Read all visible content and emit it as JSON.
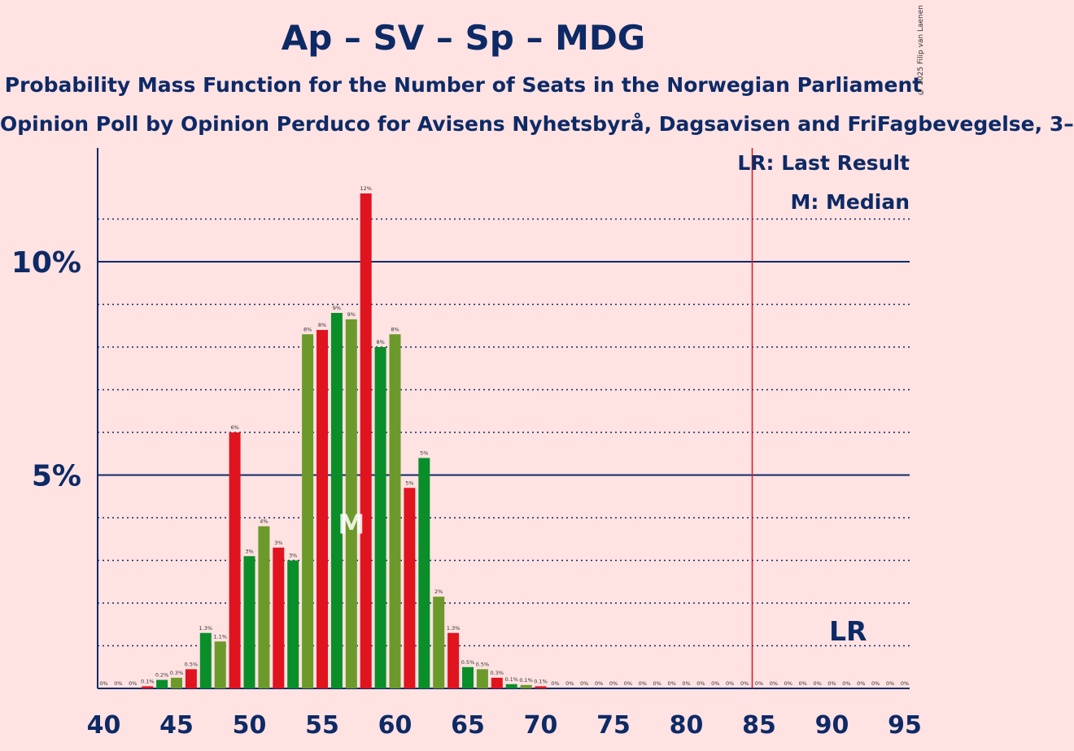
{
  "title": "Ap – SV – Sp – MDG",
  "subtitle": "Probability Mass Function for the Number of Seats in the Norwegian Parliament",
  "subsubtitle": "Opinion Poll by Opinion Perduco for Avisens Nyhetsbyrå, Dagsavisen and FriFagbevegelse, 3–",
  "credit": "© 2025 Filip van Laenen",
  "colors": {
    "background": "#FFE2E2",
    "red": "#E0141E",
    "green": "#0A8E2A",
    "olive": "#6B9A2A",
    "text": "#0D2A66",
    "last_result_line": "#E0141E"
  },
  "chart_data": {
    "type": "bar",
    "x": [
      40,
      41,
      42,
      43,
      44,
      45,
      46,
      47,
      48,
      49,
      50,
      51,
      52,
      53,
      54,
      55,
      56,
      57,
      58,
      59,
      60,
      61,
      62,
      63,
      64,
      65,
      66,
      67,
      68,
      69,
      70,
      71,
      72,
      73,
      74,
      75,
      76,
      77,
      78,
      79,
      80,
      81,
      82,
      83,
      84,
      85,
      86,
      87,
      88,
      89,
      90,
      91,
      92,
      93,
      94,
      95
    ],
    "values": [
      0,
      0,
      0,
      0.05,
      0.2,
      0.25,
      0.45,
      1.3,
      1.1,
      6.0,
      3.1,
      3.8,
      3.3,
      3.0,
      8.3,
      8.4,
      8.8,
      8.65,
      11.6,
      8.0,
      8.3,
      4.7,
      5.4,
      2.15,
      1.3,
      0.5,
      0.45,
      0.25,
      0.1,
      0.08,
      0.05,
      0,
      0,
      0,
      0,
      0,
      0,
      0,
      0,
      0,
      0,
      0,
      0,
      0,
      0,
      0,
      0,
      0,
      0,
      0,
      0,
      0,
      0,
      0,
      0,
      0
    ],
    "value_labels": [
      "0%",
      "0%",
      "0%",
      "0.1%",
      "0.2%",
      "0.3%",
      "0.5%",
      "1.3%",
      "1.1%",
      "6%",
      "3%",
      "4%",
      "3%",
      "3%",
      "8%",
      "8%",
      "9%",
      "9%",
      "12%",
      "8%",
      "8%",
      "5%",
      "5%",
      "2%",
      "1.3%",
      "0.5%",
      "0.5%",
      "0.3%",
      "0.1%",
      "0.1%",
      "0.1%",
      "0%",
      "0%",
      "0%",
      "0%",
      "0%",
      "0%",
      "0%",
      "0%",
      "0%",
      "0%",
      "0%",
      "0%",
      "0%",
      "0%",
      "0%",
      "0%",
      "0%",
      "0%",
      "0%",
      "0%",
      "0%",
      "0%",
      "0%",
      "0%",
      "0%"
    ],
    "bar_colors": [
      "red",
      "green",
      "olive"
    ],
    "x_ticks": [
      "40",
      "45",
      "50",
      "55",
      "60",
      "65",
      "70",
      "75",
      "80",
      "85",
      "90",
      "95"
    ],
    "y_ticks": [
      "5%",
      "10%"
    ],
    "ylim": [
      0,
      12.6
    ],
    "xlim": [
      40,
      95
    ],
    "major_gridlines": [
      5,
      10
    ],
    "minor_gridlines": [
      1,
      2,
      3,
      4,
      6,
      7,
      8,
      9,
      11
    ],
    "median": 57,
    "median_marker": "M",
    "last_result": 85,
    "last_result_marker": "LR",
    "legend": [
      "LR: Last Result",
      "M: Median"
    ],
    "legend_position": "top-right"
  }
}
